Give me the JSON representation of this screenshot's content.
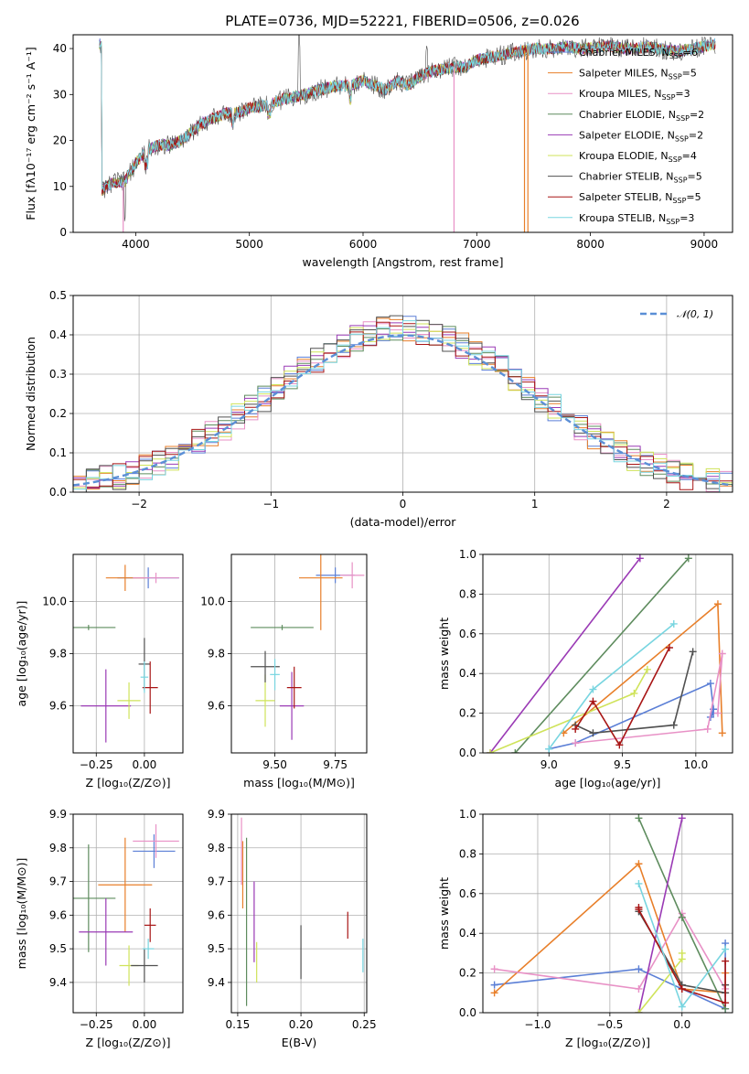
{
  "figure_title": "PLATE=0736, MJD=52221, FIBERID=0506, z=0.026",
  "colors": [
    "#5b7fd6",
    "#e87f2a",
    "#e891c6",
    "#5e8c5e",
    "#9a3ab5",
    "#cfe35a",
    "#505050",
    "#a81515",
    "#78d5e0"
  ],
  "chart_data": [
    {
      "type": "line",
      "id": "spectrum",
      "title": "PLATE=0736, MJD=52221, FIBERID=0506, z=0.026",
      "xlabel": "wavelength [Angstrom, rest frame]",
      "ylabel": "Flux [fλ10⁻¹⁷ erg cm⁻² s⁻¹ A⁻¹]",
      "xlim": [
        3450,
        9250
      ],
      "ylim": [
        0,
        43
      ],
      "xticks": [
        4000,
        5000,
        6000,
        7000,
        8000,
        9000
      ],
      "yticks": [
        0,
        10,
        20,
        30,
        40
      ],
      "grid": false,
      "legend_position": "top-right",
      "data_points": {
        "wavelength": [
          3700,
          3800,
          3900,
          4000,
          4100,
          4200,
          4300,
          4400,
          4500,
          4600,
          4700,
          4800,
          4900,
          5000,
          5100,
          5200,
          5300,
          5400,
          5500,
          5600,
          5700,
          5800,
          5900,
          6000,
          6100,
          6200,
          6300,
          6400,
          6500,
          6600,
          6700,
          6800,
          6900,
          7000,
          7100,
          7200,
          7300,
          7400,
          7500,
          7600,
          7700,
          7800,
          7900,
          8000,
          8100,
          8200,
          8300,
          8400,
          8500,
          8600,
          8700,
          8800,
          8900,
          9000,
          9100
        ],
        "flux": [
          9,
          11,
          11,
          15,
          18,
          19,
          19,
          20,
          22,
          24,
          25,
          26,
          26,
          27,
          27.5,
          28,
          29,
          29.5,
          30,
          31,
          31.5,
          32,
          32,
          33,
          32,
          31,
          33,
          32,
          34,
          35,
          35.5,
          36,
          36,
          37.5,
          38,
          38.5,
          39,
          39.5,
          40,
          40,
          40,
          40.5,
          40,
          40,
          40.5,
          40.5,
          40,
          40,
          40.5,
          40,
          39.5,
          39.5,
          40,
          40.5,
          41
        ]
      },
      "series": [
        {
          "name": "Chabrier MILES, N",
          "sub": "SSP",
          "n": "=6"
        },
        {
          "name": "Salpeter MILES, N",
          "sub": "SSP",
          "n": "=5"
        },
        {
          "name": "Kroupa MILES, N",
          "sub": "SSP",
          "n": "=3"
        },
        {
          "name": "Chabrier ELODIE, N",
          "sub": "SSP",
          "n": "=2"
        },
        {
          "name": "Salpeter ELODIE, N",
          "sub": "SSP",
          "n": "=2"
        },
        {
          "name": "Kroupa ELODIE, N",
          "sub": "SSP",
          "n": "=4"
        },
        {
          "name": "Chabrier STELIB, N",
          "sub": "SSP",
          "n": "=5"
        },
        {
          "name": "Salpeter STELIB, N",
          "sub": "SSP",
          "n": "=5"
        },
        {
          "name": "Kroupa STELIB, N",
          "sub": "SSP",
          "n": "=3"
        }
      ],
      "drops": [
        {
          "x": 3890,
          "series": 2
        },
        {
          "x": 6800,
          "series": 2
        },
        {
          "x": 7420,
          "series": 1
        },
        {
          "x": 7450,
          "series": 1
        }
      ]
    },
    {
      "type": "line",
      "id": "residuals",
      "xlabel": "(data-model)/error",
      "ylabel": "Normed distribution",
      "xlim": [
        -2.5,
        2.5
      ],
      "ylim": [
        0,
        0.5
      ],
      "xticks": [
        -2,
        -1,
        0,
        1,
        2
      ],
      "yticks": [
        0.0,
        0.1,
        0.2,
        0.3,
        0.4,
        0.5
      ],
      "grid": true,
      "legend": "𝒩(0, 1)",
      "legend_position": "top-right",
      "bin_width": 0.1
    },
    {
      "type": "scatter",
      "id": "age_vs_Z",
      "xlabel": "Z [log₁₀(Z/Z⊙)]",
      "ylabel": "age [log₁₀(age/yr)]",
      "xlim": [
        -0.37,
        0.2
      ],
      "ylim": [
        9.42,
        10.18
      ],
      "xticks": [
        -0.25,
        0.0
      ],
      "yticks": [
        9.6,
        9.8,
        10.0
      ],
      "points": [
        {
          "x": 0.02,
          "xerr": 0.16,
          "y": 10.09,
          "yerr": 0.04,
          "c": 0
        },
        {
          "x": -0.1,
          "xerr": 0.1,
          "y": 10.09,
          "yerr": 0.05,
          "c": 1
        },
        {
          "x": 0.06,
          "xerr": 0.12,
          "y": 10.09,
          "yerr": 0.02,
          "c": 2
        },
        {
          "x": -0.29,
          "xerr": 0.14,
          "y": 9.9,
          "yerr": 0.01,
          "c": 3
        },
        {
          "x": -0.2,
          "xerr": 0.13,
          "y": 9.6,
          "yerr": 0.14,
          "c": 4
        },
        {
          "x": -0.08,
          "xerr": 0.06,
          "y": 9.62,
          "yerr": 0.07,
          "c": 5
        },
        {
          "x": 0.0,
          "xerr": 0.03,
          "y": 9.76,
          "yerr": 0.1,
          "c": 6
        },
        {
          "x": 0.03,
          "xerr": 0.04,
          "y": 9.67,
          "yerr": 0.1,
          "c": 7
        },
        {
          "x": 0.0,
          "xerr": 0.02,
          "y": 9.71,
          "yerr": 0.06,
          "c": 8
        }
      ]
    },
    {
      "type": "scatter",
      "id": "age_vs_mass",
      "xlabel": "mass [log₁₀(M/M⊙)]",
      "ylabel": "",
      "xlim": [
        9.32,
        9.88
      ],
      "ylim": [
        9.42,
        10.18
      ],
      "xticks": [
        9.5,
        9.75
      ],
      "yticks": [
        9.6,
        9.8,
        10.0
      ],
      "points": [
        {
          "x": 9.75,
          "xerr": 0.08,
          "y": 10.1,
          "yerr": 0.03,
          "c": 0
        },
        {
          "x": 9.69,
          "xerr": 0.09,
          "y": 10.09,
          "yerr": 0.2,
          "c": 1
        },
        {
          "x": 9.82,
          "xerr": 0.05,
          "y": 10.1,
          "yerr": 0.05,
          "c": 2
        },
        {
          "x": 9.53,
          "xerr": 0.13,
          "y": 9.9,
          "yerr": 0.01,
          "c": 3
        },
        {
          "x": 9.57,
          "xerr": 0.05,
          "y": 9.6,
          "yerr": 0.13,
          "c": 4
        },
        {
          "x": 9.46,
          "xerr": 0.04,
          "y": 9.62,
          "yerr": 0.1,
          "c": 5
        },
        {
          "x": 9.46,
          "xerr": 0.06,
          "y": 9.75,
          "yerr": 0.06,
          "c": 6
        },
        {
          "x": 9.58,
          "xerr": 0.03,
          "y": 9.67,
          "yerr": 0.08,
          "c": 7
        },
        {
          "x": 9.5,
          "xerr": 0.02,
          "y": 9.72,
          "yerr": 0.06,
          "c": 8
        }
      ]
    },
    {
      "type": "line",
      "id": "mass_weight_vs_age",
      "xlabel": "age [log₁₀(age/yr)]",
      "ylabel": "mass weight",
      "xlim": [
        8.55,
        10.25
      ],
      "ylim": [
        0,
        1
      ],
      "xticks": [
        9.0,
        9.5,
        10.0
      ],
      "yticks": [
        0.0,
        0.2,
        0.4,
        0.6,
        0.8,
        1.0
      ],
      "grid": true,
      "series": [
        {
          "c": 0,
          "x": [
            9.0,
            9.18,
            10.1,
            10.12,
            10.1,
            10.12
          ],
          "y": [
            0.02,
            0.05,
            0.35,
            0.22,
            0.18,
            0.2
          ]
        },
        {
          "c": 1,
          "x": [
            9.1,
            10.15,
            10.18
          ],
          "y": [
            0.1,
            0.75,
            0.1
          ]
        },
        {
          "c": 2,
          "x": [
            9.18,
            10.08,
            10.18,
            10.15
          ],
          "y": [
            0.05,
            0.12,
            0.5,
            0.2
          ]
        },
        {
          "c": 3,
          "x": [
            8.77,
            9.95
          ],
          "y": [
            0.0,
            0.98
          ]
        },
        {
          "c": 4,
          "x": [
            8.6,
            9.62
          ],
          "y": [
            0.0,
            0.98
          ]
        },
        {
          "c": 5,
          "x": [
            8.6,
            9.58,
            9.67
          ],
          "y": [
            0.0,
            0.3,
            0.42
          ]
        },
        {
          "c": 6,
          "x": [
            9.18,
            9.3,
            9.85,
            9.98
          ],
          "y": [
            0.14,
            0.1,
            0.14,
            0.51
          ]
        },
        {
          "c": 7,
          "x": [
            9.18,
            9.3,
            9.48,
            9.82
          ],
          "y": [
            0.12,
            0.26,
            0.04,
            0.53
          ]
        },
        {
          "c": 8,
          "x": [
            9.0,
            9.3,
            9.85
          ],
          "y": [
            0.02,
            0.32,
            0.65
          ]
        }
      ]
    },
    {
      "type": "scatter",
      "id": "mass_vs_Z",
      "xlabel": "Z [log₁₀(Z/Z⊙)]",
      "ylabel": "mass [log₁₀(M/M⊙)]",
      "xlim": [
        -0.37,
        0.2
      ],
      "ylim": [
        9.31,
        9.9
      ],
      "xticks": [
        -0.25,
        0.0
      ],
      "yticks": [
        9.4,
        9.5,
        9.6,
        9.7,
        9.8,
        9.9
      ],
      "points": [
        {
          "x": 0.05,
          "xerr": 0.11,
          "y": 9.79,
          "yerr": 0.05,
          "c": 0
        },
        {
          "x": -0.1,
          "xerr": 0.14,
          "y": 9.69,
          "yerr": 0.14,
          "c": 1
        },
        {
          "x": 0.06,
          "xerr": 0.12,
          "y": 9.82,
          "yerr": 0.05,
          "c": 2
        },
        {
          "x": -0.29,
          "xerr": 0.14,
          "y": 9.65,
          "yerr": 0.16,
          "c": 3
        },
        {
          "x": -0.2,
          "xerr": 0.14,
          "y": 9.55,
          "yerr": 0.1,
          "c": 4
        },
        {
          "x": -0.08,
          "xerr": 0.05,
          "y": 9.45,
          "yerr": 0.06,
          "c": 5
        },
        {
          "x": 0.0,
          "xerr": 0.07,
          "y": 9.45,
          "yerr": 0.05,
          "c": 6
        },
        {
          "x": 0.03,
          "xerr": 0.03,
          "y": 9.57,
          "yerr": 0.05,
          "c": 7
        },
        {
          "x": 0.02,
          "xerr": 0.03,
          "y": 9.5,
          "yerr": 0.03,
          "c": 8
        }
      ]
    },
    {
      "type": "scatter",
      "id": "mass_vs_ebv",
      "xlabel": "E(B-V)",
      "ylabel": "",
      "xlim": [
        0.145,
        0.252
      ],
      "ylim": [
        9.31,
        9.9
      ],
      "xticks": [
        0.15,
        0.2,
        0.25
      ],
      "yticks": [
        9.4,
        9.5,
        9.6,
        9.7,
        9.8,
        9.9
      ],
      "points": [
        {
          "x": 0.153,
          "y": 9.79,
          "yerr": 0.1,
          "c": 2
        },
        {
          "x": 0.154,
          "y": 9.72,
          "yerr": 0.1,
          "c": 1
        },
        {
          "x": 0.157,
          "y": 9.58,
          "yerr": 0.25,
          "c": 3
        },
        {
          "x": 0.163,
          "y": 9.58,
          "yerr": 0.12,
          "c": 4
        },
        {
          "x": 0.165,
          "y": 9.46,
          "yerr": 0.06,
          "c": 5
        },
        {
          "x": 0.2,
          "y": 9.49,
          "yerr": 0.08,
          "c": 6
        },
        {
          "x": 0.237,
          "y": 9.57,
          "yerr": 0.04,
          "c": 7
        },
        {
          "x": 0.249,
          "y": 9.48,
          "yerr": 0.05,
          "c": 8
        }
      ]
    },
    {
      "type": "line",
      "id": "mass_weight_vs_Z",
      "xlabel": "Z [log₁₀(Z/Z⊙)]",
      "ylabel": "mass weight",
      "xlim": [
        -1.38,
        0.35
      ],
      "ylim": [
        0,
        1
      ],
      "xticks": [
        -1.0,
        -0.5,
        0.0
      ],
      "yticks": [
        0.0,
        0.2,
        0.4,
        0.6,
        0.8,
        1.0
      ],
      "grid": true,
      "series": [
        {
          "c": 0,
          "x": [
            -1.3,
            -0.3,
            0.3,
            0.3
          ],
          "y": [
            0.14,
            0.22,
            0.02,
            0.35
          ]
        },
        {
          "c": 1,
          "x": [
            -1.3,
            -0.3,
            0.0,
            0.3,
            0.3
          ],
          "y": [
            0.1,
            0.75,
            0.12,
            0.1,
            0.2
          ]
        },
        {
          "c": 2,
          "x": [
            -1.3,
            -0.3,
            0.0,
            0.3
          ],
          "y": [
            0.22,
            0.12,
            0.5,
            0.12
          ]
        },
        {
          "c": 3,
          "x": [
            -0.3,
            0.0,
            0.3
          ],
          "y": [
            0.98,
            0.48,
            0.02
          ]
        },
        {
          "c": 4,
          "x": [
            -0.3,
            0.0
          ],
          "y": [
            0.0,
            0.98
          ]
        },
        {
          "c": 5,
          "x": [
            -0.3,
            0.0,
            0.0
          ],
          "y": [
            0.0,
            0.27,
            0.3
          ]
        },
        {
          "c": 6,
          "x": [
            -0.3,
            0.0,
            0.3,
            0.3
          ],
          "y": [
            0.51,
            0.14,
            0.1,
            0.14
          ]
        },
        {
          "c": 7,
          "x": [
            -0.3,
            -0.3,
            0.0,
            0.3,
            0.3
          ],
          "y": [
            0.53,
            0.52,
            0.12,
            0.05,
            0.26
          ]
        },
        {
          "c": 8,
          "x": [
            -0.3,
            0.0,
            0.3
          ],
          "y": [
            0.65,
            0.03,
            0.32
          ]
        }
      ]
    }
  ]
}
